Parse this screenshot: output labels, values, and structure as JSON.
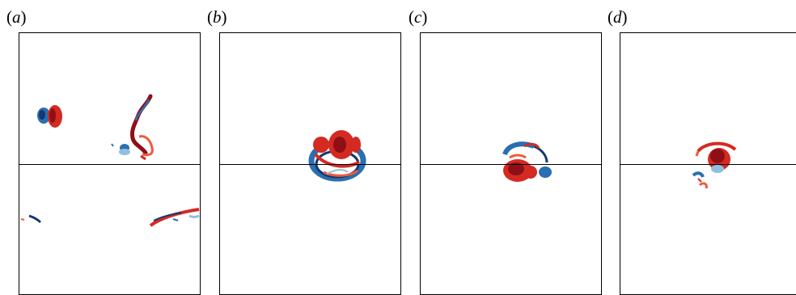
{
  "figure": {
    "panels": [
      {
        "label_open": "(",
        "label_letter": "a",
        "label_close": ")"
      },
      {
        "label_open": "(",
        "label_letter": "b",
        "label_close": ")"
      },
      {
        "label_open": "(",
        "label_letter": "c",
        "label_close": ")"
      },
      {
        "label_open": "(",
        "label_letter": "d",
        "label_close": ")"
      }
    ]
  },
  "colors": {
    "positive_dark": "#8e1016",
    "positive": "#d42a22",
    "positive_light": "#f05a3c",
    "negative_dark": "#15386e",
    "negative": "#2a6fb0",
    "negative_light": "#8fc0e0",
    "frame": "#000000",
    "background": "#ffffff"
  }
}
